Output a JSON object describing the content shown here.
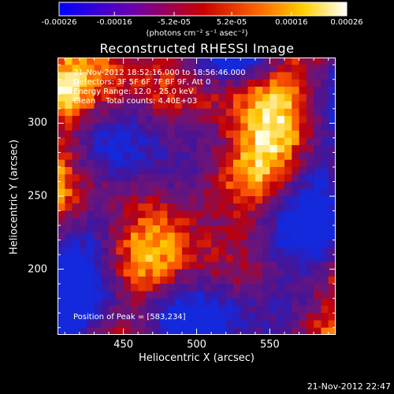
{
  "colorbar": {
    "tick_labels": [
      "-0.00026",
      "-0.00016",
      "-5.2e-05",
      "5.2e-05",
      "0.00016",
      "0.00026"
    ],
    "tick_values": [
      -0.00026,
      -0.00016,
      -5.2e-05,
      5.2e-05,
      0.00016,
      0.00026
    ],
    "range": [
      -0.00026,
      0.00026
    ],
    "units": "(photons cm⁻² s⁻¹ asec⁻²)",
    "colors": [
      "#0000ff",
      "#5500aa",
      "#aa0000",
      "#ff5500",
      "#ffcc00",
      "#ffffff"
    ]
  },
  "title": "Reconstructed RHESSI Image",
  "info": {
    "time": "21-Nov-2012 18:52:16.000 to 18:56:46.000",
    "detectors": "Detectors: 3F 5F 6F 7F 8F 9F, Att 0",
    "energy": "Energy Range: 12.0 - 25.0 keV",
    "clean": "Clean    Total counts: 4.40E+03",
    "peak": "Position of Peak = [583,234]"
  },
  "timestamp": "21-Nov-2012 22:47",
  "chart_data": {
    "type": "heatmap",
    "title": "Reconstructed RHESSI Image",
    "xlabel": "Heliocentric X (arcsec)",
    "ylabel": "Heliocentric Y (arcsec)",
    "xlim": [
      405,
      595
    ],
    "ylim": [
      155,
      345
    ],
    "xticks": [
      450,
      500,
      550
    ],
    "yticks": [
      200,
      250,
      300
    ],
    "colorbar_range": [
      -0.00026,
      0.00026
    ],
    "peak_position": [
      583,
      234
    ]
  }
}
